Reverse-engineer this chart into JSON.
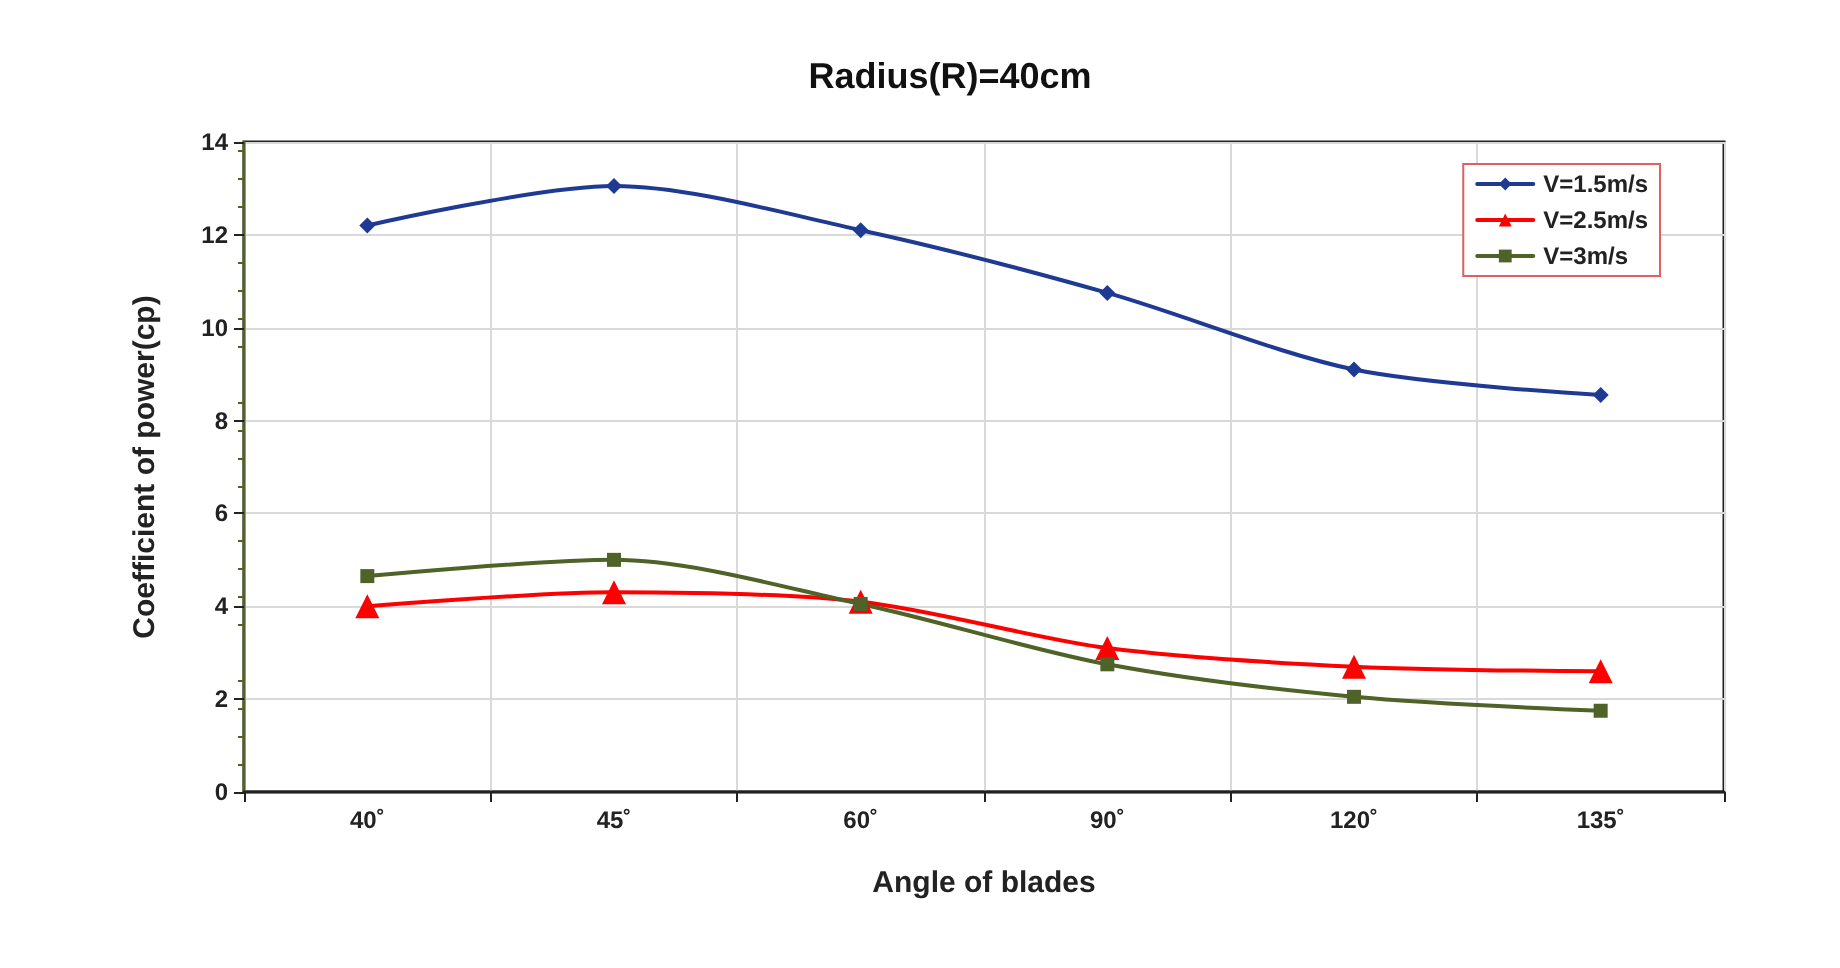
{
  "chart_data": {
    "type": "line",
    "title": "Radius(R)=40cm",
    "xlabel": "Angle of blades",
    "ylabel": "Coefficient of power(cp)",
    "categories": [
      "40˚",
      "45˚",
      "60˚",
      "90˚",
      "120˚",
      "135˚"
    ],
    "series": [
      {
        "name": "V=1.5m/s",
        "color": "#1f3a93",
        "marker": "diamond",
        "values": [
          12.2,
          13.05,
          12.1,
          10.75,
          9.1,
          8.55
        ]
      },
      {
        "name": "V=2.5m/s",
        "color": "#ff0000",
        "marker": "triangle",
        "values": [
          4.0,
          4.3,
          4.1,
          3.1,
          2.7,
          2.6
        ]
      },
      {
        "name": "V=3m/s",
        "color": "#4f6228",
        "marker": "square",
        "values": [
          4.65,
          5.0,
          4.05,
          2.75,
          2.05,
          1.75
        ]
      }
    ],
    "ylim": [
      0,
      14
    ],
    "yticks": [
      0,
      2,
      4,
      6,
      8,
      10,
      12,
      14
    ],
    "grid": true,
    "legend": "top right",
    "line_style": "solid"
  }
}
